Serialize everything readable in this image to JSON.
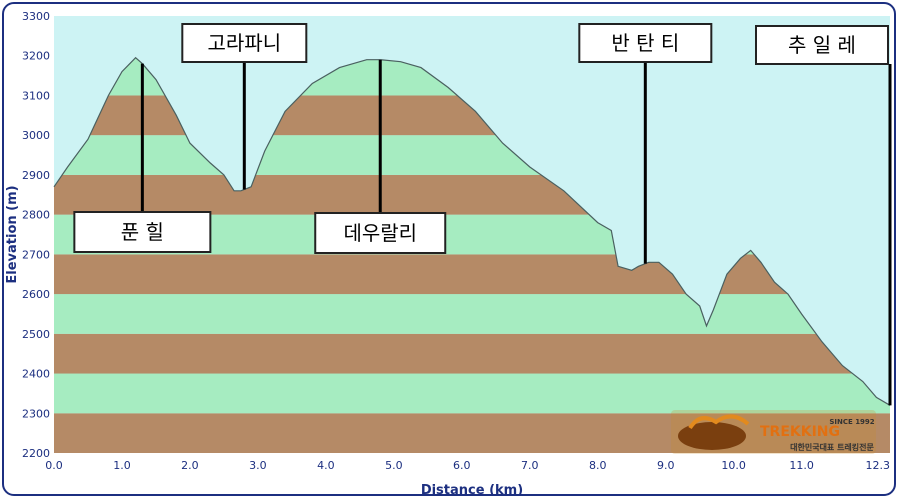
{
  "chart_data": {
    "type": "area",
    "xlabel": "Distance (km)",
    "ylabel": "Elevation (m)",
    "xlim": [
      0,
      12.3
    ],
    "ylim": [
      2200,
      3300
    ],
    "x_ticks": [
      "0.0",
      "1.0",
      "2.0",
      "3.0",
      "4.0",
      "5.0",
      "6.0",
      "7.0",
      "8.0",
      "9.0",
      "10.0",
      "11.0",
      "12.3"
    ],
    "y_ticks": [
      "2200",
      "2300",
      "2400",
      "2500",
      "2600",
      "2700",
      "2800",
      "2900",
      "3000",
      "3100",
      "3200",
      "3300"
    ],
    "band_step": 100,
    "grid": false,
    "colors": {
      "band_green": "#a6ecc1",
      "band_brown": "#b58a66",
      "sky": "#cdf3f4",
      "axis_text": "#1c2f80",
      "frame": "#1c2f80"
    },
    "series": [
      {
        "x": [
          0,
          0.2,
          0.5,
          0.8,
          1.0,
          1.2,
          1.3,
          1.5,
          1.8,
          2.0,
          2.3,
          2.5,
          2.65,
          2.75,
          2.9,
          3.1,
          3.4,
          3.8,
          4.2,
          4.6,
          4.8,
          5.1,
          5.4,
          5.8,
          6.2,
          6.6,
          7.0,
          7.5,
          8.0,
          8.2,
          8.3,
          8.5,
          8.6,
          8.75,
          8.9,
          9.1,
          9.3,
          9.5,
          9.6,
          9.7,
          9.9,
          10.1,
          10.25,
          10.4,
          10.6,
          10.8,
          11.0,
          11.3,
          11.6,
          11.9,
          12.1,
          12.3
        ],
        "y": [
          2870,
          2920,
          2990,
          3100,
          3160,
          3195,
          3180,
          3140,
          3050,
          2980,
          2930,
          2900,
          2860,
          2860,
          2870,
          2960,
          3060,
          3130,
          3170,
          3190,
          3190,
          3185,
          3170,
          3120,
          3060,
          2980,
          2920,
          2860,
          2780,
          2760,
          2670,
          2660,
          2670,
          2680,
          2680,
          2650,
          2600,
          2570,
          2520,
          2560,
          2650,
          2690,
          2710,
          2680,
          2630,
          2600,
          2550,
          2480,
          2420,
          2380,
          2340,
          2320
        ]
      }
    ],
    "annotations": [
      {
        "label": "푼 힐",
        "x": 1.3
      },
      {
        "label": "고라파니",
        "x": 2.8
      },
      {
        "label": "데우랄리",
        "x": 4.8
      },
      {
        "label": "반 탄 티",
        "x": 8.7
      },
      {
        "label": "추 일 레",
        "x": 12.3
      }
    ]
  },
  "logo": {
    "name": "TREKKING",
    "since": "SINCE 1992",
    "tagline": "대한민국대표 트레킹전문"
  }
}
